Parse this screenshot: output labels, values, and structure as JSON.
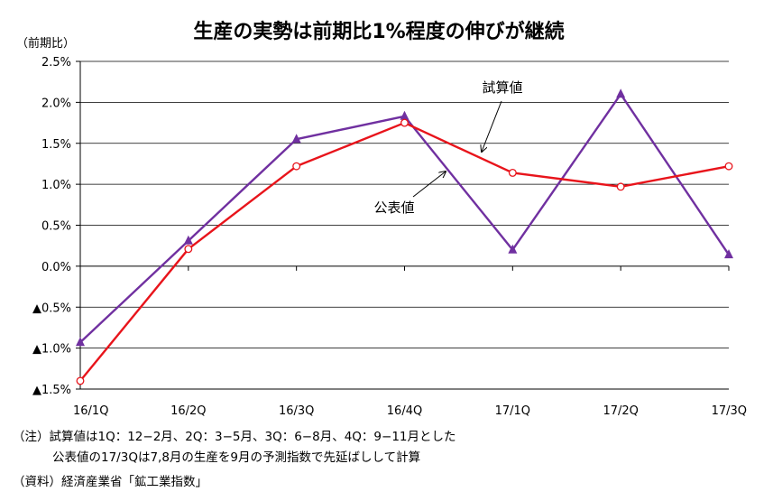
{
  "chart_data": {
    "type": "line",
    "title": "生産の実勢は前期比1%程度の伸びが継続",
    "ylabel": "（前期比）",
    "xlabel": "",
    "categories": [
      "16/1Q",
      "16/2Q",
      "16/3Q",
      "16/4Q",
      "17/1Q",
      "17/2Q",
      "17/3Q"
    ],
    "ylim": [
      -1.5,
      2.5
    ],
    "y_ticks": [
      {
        "value": 2.5,
        "label": "2.5%"
      },
      {
        "value": 2.0,
        "label": "2.0%"
      },
      {
        "value": 1.5,
        "label": "1.5%"
      },
      {
        "value": 1.0,
        "label": "1.0%"
      },
      {
        "value": 0.5,
        "label": "0.5%"
      },
      {
        "value": 0.0,
        "label": "0.0%"
      },
      {
        "value": -0.5,
        "label": "▲0.5%"
      },
      {
        "value": -1.0,
        "label": "▲1.0%"
      },
      {
        "value": -1.5,
        "label": "▲1.5%"
      }
    ],
    "grid": "horizontal",
    "series": [
      {
        "name": "公表値",
        "color": "#7030A0",
        "marker": "triangle",
        "values": [
          -0.93,
          0.31,
          1.55,
          1.83,
          0.2,
          2.1,
          0.14
        ]
      },
      {
        "name": "試算値",
        "color": "#E8141B",
        "marker": "open-circle",
        "values": [
          -1.4,
          0.21,
          1.22,
          1.75,
          1.14,
          0.97,
          1.22
        ]
      }
    ],
    "annotations": [
      {
        "text": "試算値",
        "series": "試算値"
      },
      {
        "text": "公表値",
        "series": "公表値"
      }
    ]
  },
  "notes": [
    "（注）試算値は1Q：12−2月、2Q：3−5月、3Q：6−8月、4Q：9−11月とした",
    "公表値の17/3Qは7,8月の生産を9月の予測指数で先延ばしして計算",
    "（資料）経済産業省「鉱工業指数」"
  ]
}
